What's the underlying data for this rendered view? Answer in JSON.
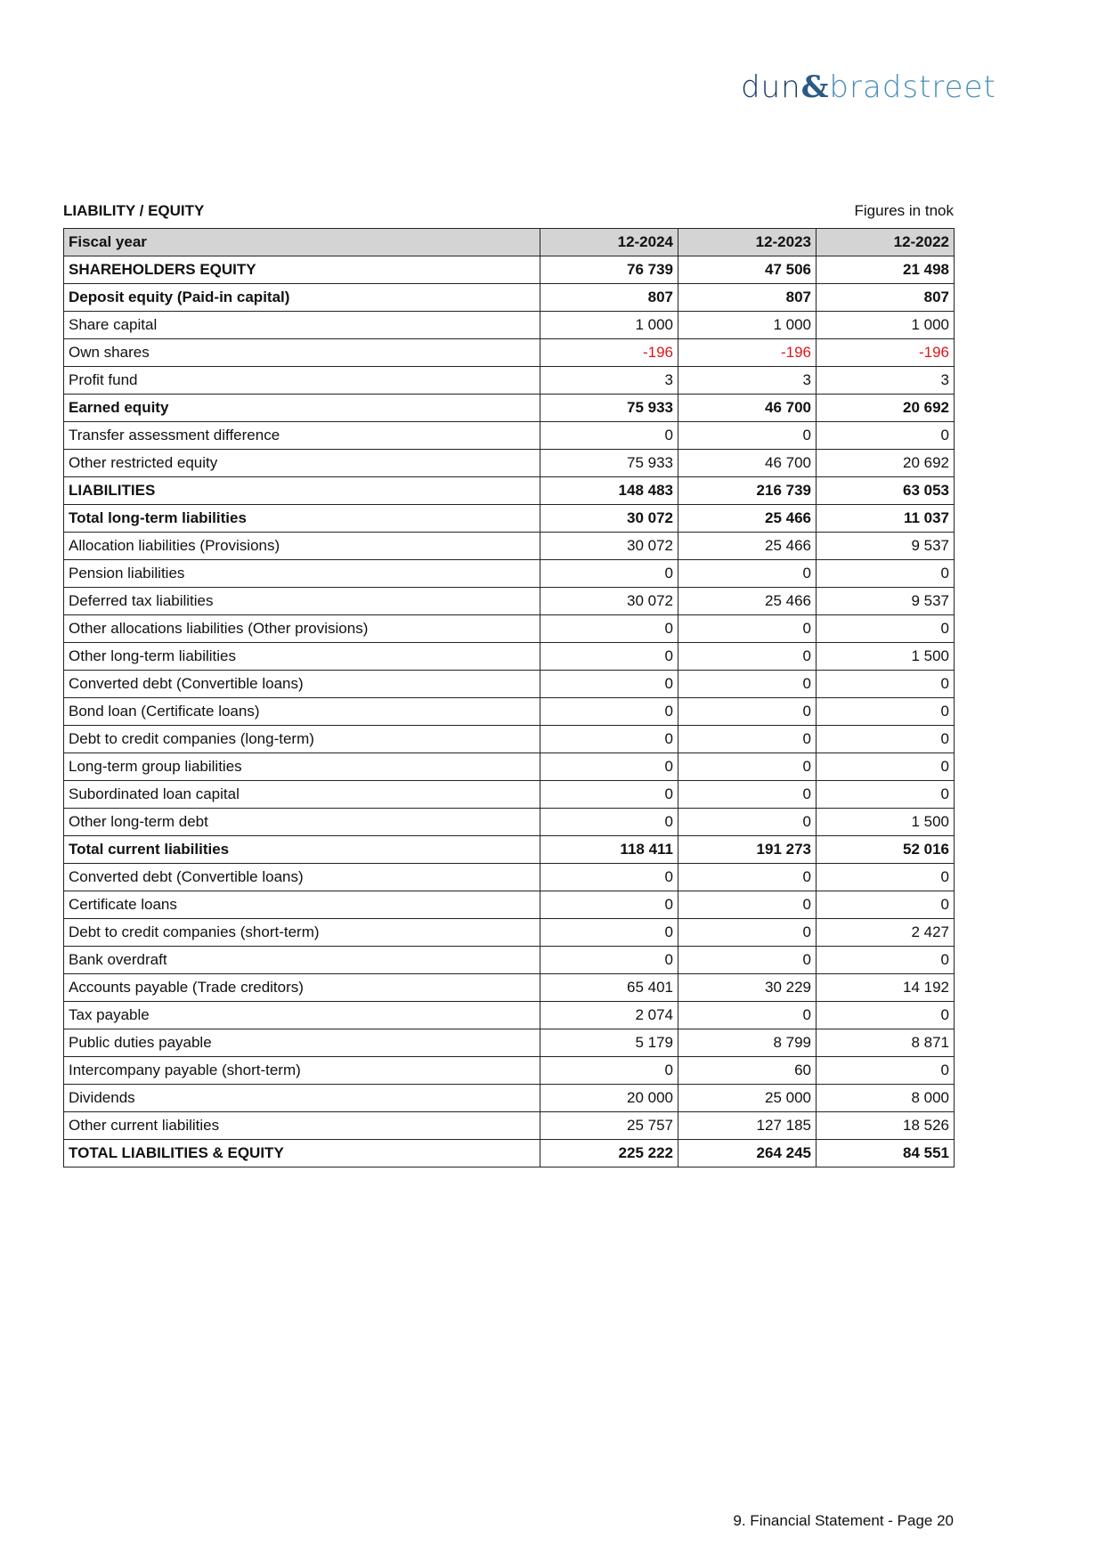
{
  "logo": {
    "part1": "dun",
    "amp": "&",
    "part2": "bradstreet"
  },
  "section_title": "LIABILITY / EQUITY",
  "units": "Figures in tnok",
  "table": {
    "headers": [
      "Fiscal year",
      "12-2024",
      "12-2023",
      "12-2022"
    ],
    "rows": [
      {
        "label": "SHAREHOLDERS EQUITY",
        "bold": true,
        "values": [
          "76 739",
          "47 506",
          "21 498"
        ]
      },
      {
        "label": "Deposit equity (Paid-in capital)",
        "bold": true,
        "values": [
          "807",
          "807",
          "807"
        ]
      },
      {
        "label": "Share capital",
        "values": [
          "1 000",
          "1 000",
          "1 000"
        ]
      },
      {
        "label": "Own shares",
        "values": [
          "-196",
          "-196",
          "-196"
        ]
      },
      {
        "label": "Profit fund",
        "values": [
          "3",
          "3",
          "3"
        ]
      },
      {
        "label": "Earned equity",
        "bold": true,
        "values": [
          "75 933",
          "46 700",
          "20 692"
        ]
      },
      {
        "label": "Transfer assessment difference",
        "values": [
          "0",
          "0",
          "0"
        ]
      },
      {
        "label": "Other restricted equity",
        "values": [
          "75 933",
          "46 700",
          "20 692"
        ]
      },
      {
        "label": "LIABILITIES",
        "bold": true,
        "values": [
          "148 483",
          "216 739",
          "63 053"
        ]
      },
      {
        "label": "Total long-term liabilities",
        "bold": true,
        "values": [
          "30 072",
          "25 466",
          "11 037"
        ]
      },
      {
        "label": "Allocation liabilities (Provisions)",
        "values": [
          "30 072",
          "25 466",
          "9 537"
        ]
      },
      {
        "label": "Pension liabilities",
        "values": [
          "0",
          "0",
          "0"
        ]
      },
      {
        "label": "Deferred tax liabilities",
        "values": [
          "30 072",
          "25 466",
          "9 537"
        ]
      },
      {
        "label": "Other allocations liabilities (Other provisions)",
        "values": [
          "0",
          "0",
          "0"
        ]
      },
      {
        "label": "Other long-term liabilities",
        "values": [
          "0",
          "0",
          "1 500"
        ]
      },
      {
        "label": "Converted debt (Convertible loans)",
        "values": [
          "0",
          "0",
          "0"
        ]
      },
      {
        "label": "Bond loan (Certificate loans)",
        "values": [
          "0",
          "0",
          "0"
        ]
      },
      {
        "label": "Debt to credit companies (long-term)",
        "values": [
          "0",
          "0",
          "0"
        ]
      },
      {
        "label": "Long-term group liabilities",
        "values": [
          "0",
          "0",
          "0"
        ]
      },
      {
        "label": "Subordinated loan capital",
        "values": [
          "0",
          "0",
          "0"
        ]
      },
      {
        "label": "Other long-term debt",
        "values": [
          "0",
          "0",
          "1 500"
        ]
      },
      {
        "label": "Total current liabilities",
        "bold": true,
        "values": [
          "118 411",
          "191 273",
          "52 016"
        ]
      },
      {
        "label": "Converted debt (Convertible loans)",
        "values": [
          "0",
          "0",
          "0"
        ]
      },
      {
        "label": "Certificate loans",
        "values": [
          "0",
          "0",
          "0"
        ]
      },
      {
        "label": "Debt to credit companies (short-term)",
        "values": [
          "0",
          "0",
          "2 427"
        ]
      },
      {
        "label": "Bank overdraft",
        "values": [
          "0",
          "0",
          "0"
        ]
      },
      {
        "label": "Accounts payable (Trade creditors)",
        "values": [
          "65 401",
          "30 229",
          "14 192"
        ]
      },
      {
        "label": "Tax payable",
        "values": [
          "2 074",
          "0",
          "0"
        ]
      },
      {
        "label": "Public duties payable",
        "values": [
          "5 179",
          "8 799",
          "8 871"
        ]
      },
      {
        "label": "Intercompany payable (short-term)",
        "values": [
          "0",
          "60",
          "0"
        ]
      },
      {
        "label": "Dividends",
        "values": [
          "20 000",
          "25 000",
          "8 000"
        ]
      },
      {
        "label": "Other current liabilities",
        "values": [
          "25 757",
          "127 185",
          "18 526"
        ]
      },
      {
        "label": "TOTAL LIABILITIES & EQUITY",
        "bold": true,
        "values": [
          "225 222",
          "264 245",
          "84 551"
        ]
      }
    ]
  },
  "colors": {
    "negative": "#e0151b",
    "header_bg": "#d4d4d4"
  },
  "footer": "9. Financial Statement - Page 20"
}
